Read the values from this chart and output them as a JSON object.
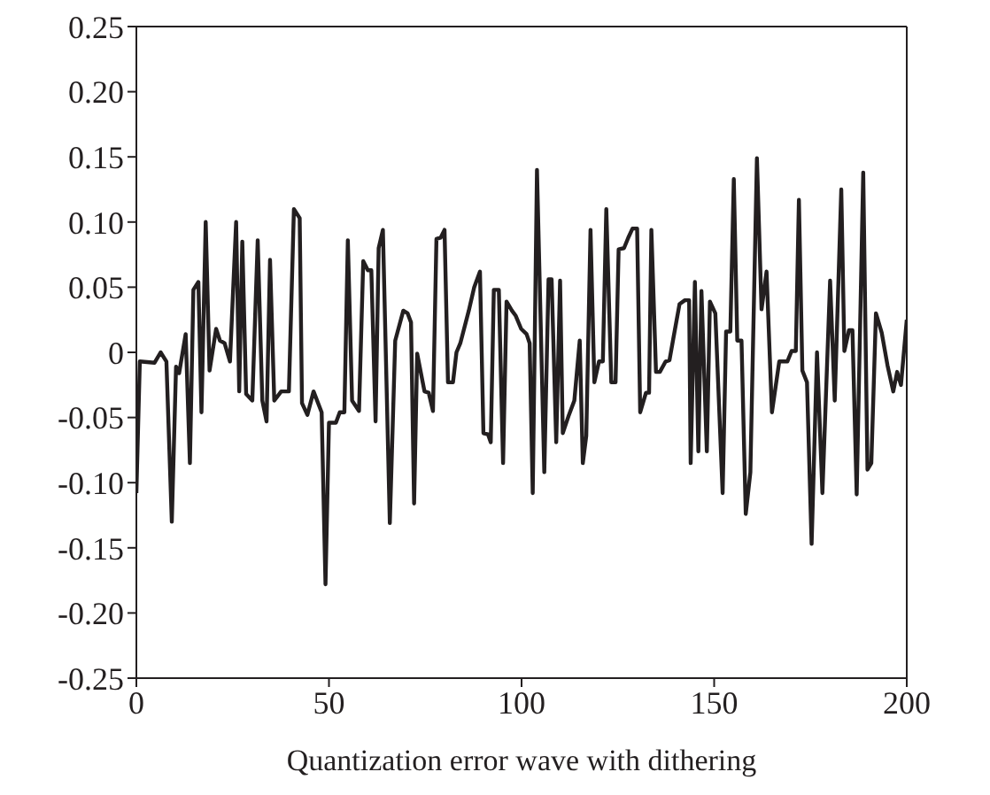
{
  "chart_data": {
    "type": "line",
    "xlabel": "Quantization error wave with dithering",
    "color": "#231f20",
    "x": [
      0,
      0.9,
      4.7,
      6.3,
      7.8,
      9.2,
      10.3,
      11.1,
      12.8,
      13.9,
      14.8,
      16.1,
      16.9,
      18,
      19,
      20.7,
      21.7,
      22.9,
      24.3,
      25.9,
      26.7,
      27.5,
      28.5,
      30.1,
      31.5,
      32.7,
      33.8,
      34.7,
      35.8,
      37.6,
      39.6,
      40.9,
      42.4,
      43,
      44.4,
      46,
      48.1,
      49.1,
      50,
      51.8,
      52.8,
      54,
      54.9,
      56,
      57.8,
      58.9,
      60.1,
      61,
      62.1,
      62.9,
      64,
      65.8,
      67.2,
      69.3,
      70.4,
      71.3,
      72.1,
      72.9,
      74.8,
      75.9,
      77,
      77.9,
      79,
      80,
      80.9,
      82.2,
      83.1,
      84.1,
      86.3,
      87.7,
      89.2,
      90.1,
      91.3,
      92,
      92.8,
      94.1,
      95.2,
      96.1,
      97.5,
      98.5,
      99.9,
      101.3,
      102.1,
      102.9,
      104,
      105.9,
      107,
      107.8,
      109,
      110,
      110.7,
      112.3,
      113.7,
      115.1,
      115.9,
      116.8,
      117.9,
      118.9,
      120.1,
      121.1,
      122,
      123.3,
      124.4,
      125.2,
      126.6,
      127.7,
      128.8,
      130,
      130.8,
      132.3,
      133.1,
      133.7,
      134.9,
      135.9,
      137.4,
      138.4,
      139.3,
      141,
      142.4,
      143.5,
      143.9,
      145,
      145.9,
      146.7,
      148.1,
      148.9,
      150.3,
      152.2,
      153.1,
      154.2,
      155.1,
      156,
      157.1,
      158.2,
      159.4,
      161.1,
      162.3,
      163.6,
      165,
      166.9,
      169,
      170.1,
      171.2,
      172,
      172.9,
      174.1,
      175.3,
      176.7,
      178.1,
      180.1,
      181.3,
      183,
      183.8,
      185,
      185.9,
      187,
      188.7,
      189.8,
      190.8,
      192,
      193.5,
      195,
      196.5,
      197.5,
      198.5,
      200
    ],
    "values": [
      -0.108,
      -0.007,
      -0.008,
      0,
      -0.007,
      -0.13,
      -0.011,
      -0.016,
      0.014,
      -0.085,
      0.048,
      0.054,
      -0.046,
      0.1,
      -0.014,
      0.018,
      0.009,
      0.007,
      -0.007,
      0.1,
      -0.03,
      0.085,
      -0.032,
      -0.037,
      0.086,
      -0.037,
      -0.053,
      0.071,
      -0.037,
      -0.03,
      -0.03,
      0.11,
      0.103,
      -0.039,
      -0.048,
      -0.03,
      -0.046,
      -0.178,
      -0.054,
      -0.054,
      -0.046,
      -0.046,
      0.086,
      -0.037,
      -0.045,
      0.07,
      0.063,
      0.063,
      -0.053,
      0.08,
      0.094,
      -0.131,
      0.009,
      0.032,
      0.03,
      0.023,
      -0.116,
      -0.001,
      -0.03,
      -0.031,
      -0.045,
      0.087,
      0.088,
      0.094,
      -0.023,
      -0.023,
      0,
      0.007,
      0.032,
      0.05,
      0.062,
      -0.062,
      -0.063,
      -0.069,
      0.048,
      0.048,
      -0.085,
      0.039,
      0.032,
      0.028,
      0.018,
      0.014,
      0.007,
      -0.108,
      0.14,
      -0.092,
      0.056,
      0.056,
      -0.069,
      0.055,
      -0.062,
      -0.048,
      -0.037,
      0.009,
      -0.085,
      -0.064,
      0.094,
      -0.023,
      -0.007,
      -0.007,
      0.11,
      -0.023,
      -0.023,
      0.079,
      0.08,
      0.088,
      0.095,
      0.095,
      -0.046,
      -0.031,
      -0.031,
      0.094,
      -0.015,
      -0.015,
      -0.007,
      -0.006,
      0.009,
      0.037,
      0.04,
      0.04,
      -0.085,
      0.054,
      -0.076,
      0.047,
      -0.076,
      0.039,
      0.03,
      -0.108,
      0.016,
      0.016,
      0.133,
      0.009,
      0.009,
      -0.124,
      -0.092,
      0.149,
      0.033,
      0.062,
      -0.046,
      -0.007,
      -0.007,
      0.001,
      0.001,
      0.117,
      -0.014,
      -0.023,
      -0.147,
      0,
      -0.108,
      0.055,
      -0.037,
      0.125,
      0.001,
      0.017,
      0.017,
      -0.109,
      0.138,
      -0.09,
      -0.085,
      0.03,
      0.015,
      -0.01,
      -0.03,
      -0.015,
      -0.025,
      0.025
    ],
    "xlim": [
      0,
      200
    ],
    "xticks": [
      0,
      50,
      100,
      150,
      200
    ],
    "ylim": [
      -0.25,
      0.25
    ],
    "yticks": [
      -0.25,
      {
        "value": -0.2,
        "label": "-0.20"
      },
      -0.15,
      {
        "value": -0.1,
        "label": "-0.10"
      },
      -0.05,
      0,
      0.05,
      {
        "value": 0.1,
        "label": "0.10"
      },
      0.15,
      {
        "value": 0.2,
        "label": "0.20"
      },
      0.25
    ]
  }
}
